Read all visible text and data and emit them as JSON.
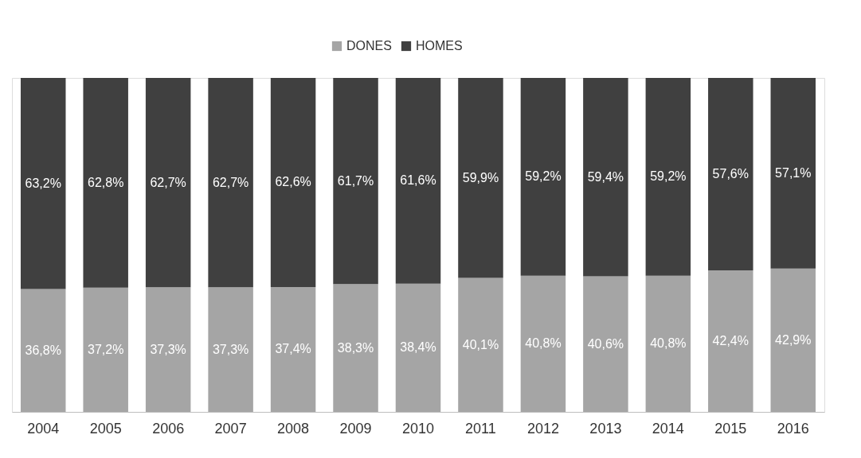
{
  "chart_data": {
    "type": "bar",
    "stacked": true,
    "legend": "top",
    "grid": false,
    "categories": [
      "2004",
      "2005",
      "2006",
      "2007",
      "2008",
      "2009",
      "2010",
      "2011",
      "2012",
      "2013",
      "2014",
      "2015",
      "2016"
    ],
    "series": [
      {
        "name": "DONES",
        "color": "#a5a5a5",
        "values": [
          36.8,
          37.2,
          37.3,
          37.3,
          37.4,
          38.3,
          38.4,
          40.1,
          40.8,
          40.6,
          40.8,
          42.4,
          42.9
        ],
        "value_labels": [
          "36,8%",
          "37,2%",
          "37,3%",
          "37,3%",
          "37,4%",
          "38,3%",
          "38,4%",
          "40,1%",
          "40,8%",
          "40,6%",
          "40,8%",
          "42,4%",
          "42,9%"
        ]
      },
      {
        "name": "HOMES",
        "color": "#404040",
        "values": [
          63.2,
          62.8,
          62.7,
          62.7,
          62.6,
          61.7,
          61.6,
          59.9,
          59.2,
          59.4,
          59.2,
          57.6,
          57.1
        ],
        "value_labels": [
          "63,2%",
          "62,8%",
          "62,7%",
          "62,7%",
          "62,6%",
          "61,7%",
          "61,6%",
          "59,9%",
          "59,2%",
          "59,4%",
          "59,2%",
          "57,6%",
          "57,1%"
        ]
      }
    ]
  }
}
